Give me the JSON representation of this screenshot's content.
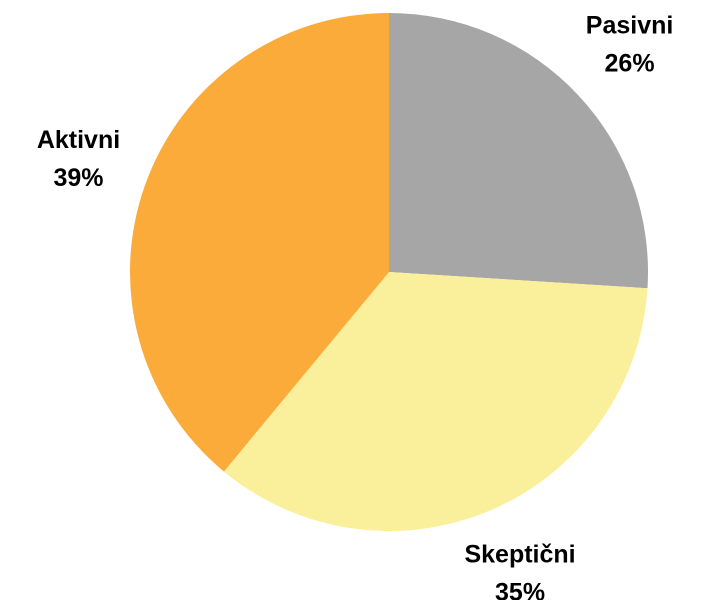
{
  "chart_data": {
    "type": "pie",
    "categories": [
      "Pasivni",
      "Skeptični",
      "Aktivni"
    ],
    "values": [
      26,
      35,
      39
    ],
    "value_labels": [
      "26%",
      "35%",
      "39%"
    ],
    "colors": [
      "#a6a6a6",
      "#faf09b",
      "#fbab3a"
    ]
  }
}
